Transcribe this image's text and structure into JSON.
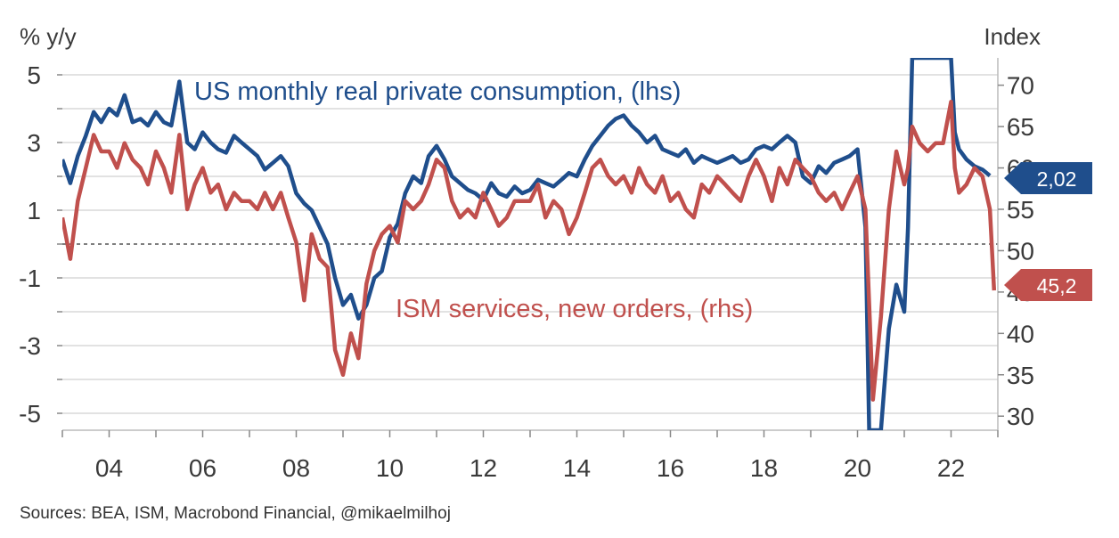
{
  "colors": {
    "consumption": "#1f4e8c",
    "ism": "#c0504d",
    "grid": "#d9d9d9",
    "axis_text": "#3a3a3a"
  },
  "source": "Sources: BEA, ISM, Macrobond Financial, @mikaelmilhoj",
  "chart_data": {
    "type": "line",
    "left_axis": {
      "label": "% y/y",
      "range": [
        -5.5,
        5.5
      ],
      "ticks": [
        5,
        3,
        1,
        -1,
        -3,
        -5
      ],
      "tick_labels": [
        "5",
        "3",
        "1",
        "-1",
        "-3",
        "-5"
      ]
    },
    "right_axis": {
      "label": "Index",
      "range": [
        28.3,
        73.3
      ],
      "ticks": [
        70,
        65,
        60,
        55,
        50,
        45,
        40,
        35,
        30
      ],
      "tick_labels": [
        "70",
        "65",
        "60",
        "55",
        "50",
        "45",
        "40",
        "35",
        "30"
      ]
    },
    "x_axis": {
      "range": [
        2003.0,
        2023.0
      ],
      "ticks": [
        2004,
        2006,
        2008,
        2010,
        2012,
        2014,
        2016,
        2018,
        2020,
        2022
      ],
      "tick_labels": [
        "04",
        "06",
        "08",
        "10",
        "12",
        "14",
        "16",
        "18",
        "20",
        "22"
      ]
    },
    "reference_line": {
      "value": 0,
      "axis": "left",
      "style": "dashed"
    },
    "grid": true,
    "series": [
      {
        "name": "US monthly real private consumption, (lhs)",
        "axis": "left",
        "last_value_label": "2,02",
        "points": [
          [
            2003.0,
            2.5
          ],
          [
            2003.17,
            1.8
          ],
          [
            2003.33,
            2.6
          ],
          [
            2003.5,
            3.2
          ],
          [
            2003.67,
            3.9
          ],
          [
            2003.83,
            3.6
          ],
          [
            2004.0,
            4.0
          ],
          [
            2004.17,
            3.8
          ],
          [
            2004.33,
            4.4
          ],
          [
            2004.5,
            3.6
          ],
          [
            2004.67,
            3.7
          ],
          [
            2004.83,
            3.5
          ],
          [
            2005.0,
            3.9
          ],
          [
            2005.17,
            3.6
          ],
          [
            2005.33,
            3.5
          ],
          [
            2005.5,
            4.8
          ],
          [
            2005.67,
            3.0
          ],
          [
            2005.83,
            2.8
          ],
          [
            2006.0,
            3.3
          ],
          [
            2006.17,
            3.0
          ],
          [
            2006.33,
            2.8
          ],
          [
            2006.5,
            2.7
          ],
          [
            2006.67,
            3.2
          ],
          [
            2006.83,
            3.0
          ],
          [
            2007.0,
            2.8
          ],
          [
            2007.17,
            2.6
          ],
          [
            2007.33,
            2.2
          ],
          [
            2007.5,
            2.4
          ],
          [
            2007.67,
            2.6
          ],
          [
            2007.83,
            2.3
          ],
          [
            2008.0,
            1.5
          ],
          [
            2008.17,
            1.2
          ],
          [
            2008.33,
            1.0
          ],
          [
            2008.5,
            0.5
          ],
          [
            2008.67,
            0.0
          ],
          [
            2008.83,
            -1.0
          ],
          [
            2009.0,
            -1.8
          ],
          [
            2009.17,
            -1.5
          ],
          [
            2009.33,
            -2.2
          ],
          [
            2009.5,
            -1.8
          ],
          [
            2009.67,
            -1.0
          ],
          [
            2009.83,
            -0.8
          ],
          [
            2010.0,
            0.2
          ],
          [
            2010.17,
            0.6
          ],
          [
            2010.33,
            1.5
          ],
          [
            2010.5,
            2.0
          ],
          [
            2010.67,
            1.8
          ],
          [
            2010.83,
            2.6
          ],
          [
            2011.0,
            2.9
          ],
          [
            2011.17,
            2.5
          ],
          [
            2011.33,
            2.0
          ],
          [
            2011.5,
            1.8
          ],
          [
            2011.67,
            1.6
          ],
          [
            2011.83,
            1.5
          ],
          [
            2012.0,
            1.3
          ],
          [
            2012.17,
            1.8
          ],
          [
            2012.33,
            1.5
          ],
          [
            2012.5,
            1.4
          ],
          [
            2012.67,
            1.7
          ],
          [
            2012.83,
            1.5
          ],
          [
            2013.0,
            1.6
          ],
          [
            2013.17,
            1.9
          ],
          [
            2013.33,
            1.8
          ],
          [
            2013.5,
            1.7
          ],
          [
            2013.67,
            1.9
          ],
          [
            2013.83,
            2.1
          ],
          [
            2014.0,
            2.0
          ],
          [
            2014.17,
            2.5
          ],
          [
            2014.33,
            2.9
          ],
          [
            2014.5,
            3.2
          ],
          [
            2014.67,
            3.5
          ],
          [
            2014.83,
            3.7
          ],
          [
            2015.0,
            3.8
          ],
          [
            2015.17,
            3.5
          ],
          [
            2015.33,
            3.3
          ],
          [
            2015.5,
            3.0
          ],
          [
            2015.67,
            3.2
          ],
          [
            2015.83,
            2.8
          ],
          [
            2016.0,
            2.7
          ],
          [
            2016.17,
            2.6
          ],
          [
            2016.33,
            2.8
          ],
          [
            2016.5,
            2.4
          ],
          [
            2016.67,
            2.6
          ],
          [
            2016.83,
            2.5
          ],
          [
            2017.0,
            2.4
          ],
          [
            2017.17,
            2.5
          ],
          [
            2017.33,
            2.6
          ],
          [
            2017.5,
            2.4
          ],
          [
            2017.67,
            2.5
          ],
          [
            2017.83,
            2.8
          ],
          [
            2018.0,
            2.9
          ],
          [
            2018.17,
            2.8
          ],
          [
            2018.33,
            3.0
          ],
          [
            2018.5,
            3.2
          ],
          [
            2018.67,
            3.0
          ],
          [
            2018.83,
            2.0
          ],
          [
            2019.0,
            1.8
          ],
          [
            2019.17,
            2.3
          ],
          [
            2019.33,
            2.1
          ],
          [
            2019.5,
            2.4
          ],
          [
            2019.67,
            2.5
          ],
          [
            2019.83,
            2.6
          ],
          [
            2020.0,
            2.8
          ],
          [
            2020.17,
            0.5
          ],
          [
            2020.25,
            -5.5
          ],
          [
            2020.33,
            -5.5
          ],
          [
            2020.5,
            -5.5
          ],
          [
            2020.67,
            -2.5
          ],
          [
            2020.83,
            -1.2
          ],
          [
            2021.0,
            -2.0
          ],
          [
            2021.08,
            0.5
          ],
          [
            2021.17,
            5.5
          ],
          [
            2021.25,
            5.5
          ],
          [
            2021.33,
            5.5
          ],
          [
            2021.5,
            5.5
          ],
          [
            2021.67,
            5.5
          ],
          [
            2021.83,
            5.5
          ],
          [
            2022.0,
            5.5
          ],
          [
            2022.08,
            3.3
          ],
          [
            2022.17,
            2.8
          ],
          [
            2022.33,
            2.5
          ],
          [
            2022.5,
            2.3
          ],
          [
            2022.67,
            2.2
          ],
          [
            2022.83,
            2.02
          ]
        ]
      },
      {
        "name": "ISM services, new orders, (rhs)",
        "axis": "right",
        "last_value_label": "45,2",
        "points": [
          [
            2003.0,
            54
          ],
          [
            2003.17,
            49
          ],
          [
            2003.33,
            56
          ],
          [
            2003.5,
            60
          ],
          [
            2003.67,
            64
          ],
          [
            2003.83,
            62
          ],
          [
            2004.0,
            62
          ],
          [
            2004.17,
            60
          ],
          [
            2004.33,
            63
          ],
          [
            2004.5,
            61
          ],
          [
            2004.67,
            60
          ],
          [
            2004.83,
            58
          ],
          [
            2005.0,
            62
          ],
          [
            2005.17,
            60
          ],
          [
            2005.33,
            57
          ],
          [
            2005.5,
            64
          ],
          [
            2005.67,
            55
          ],
          [
            2005.83,
            58
          ],
          [
            2006.0,
            60
          ],
          [
            2006.17,
            57
          ],
          [
            2006.33,
            58
          ],
          [
            2006.5,
            55
          ],
          [
            2006.67,
            57
          ],
          [
            2006.83,
            56
          ],
          [
            2007.0,
            56
          ],
          [
            2007.17,
            55
          ],
          [
            2007.33,
            57
          ],
          [
            2007.5,
            55
          ],
          [
            2007.67,
            57
          ],
          [
            2007.83,
            54
          ],
          [
            2008.0,
            51
          ],
          [
            2008.17,
            44
          ],
          [
            2008.33,
            52
          ],
          [
            2008.5,
            49
          ],
          [
            2008.67,
            48
          ],
          [
            2008.83,
            38
          ],
          [
            2009.0,
            35
          ],
          [
            2009.17,
            40
          ],
          [
            2009.33,
            37
          ],
          [
            2009.5,
            46
          ],
          [
            2009.67,
            50
          ],
          [
            2009.83,
            52
          ],
          [
            2010.0,
            53
          ],
          [
            2010.17,
            51
          ],
          [
            2010.33,
            56
          ],
          [
            2010.5,
            55
          ],
          [
            2010.67,
            56
          ],
          [
            2010.83,
            58
          ],
          [
            2011.0,
            61
          ],
          [
            2011.17,
            60
          ],
          [
            2011.33,
            56
          ],
          [
            2011.5,
            54
          ],
          [
            2011.67,
            55
          ],
          [
            2011.83,
            54
          ],
          [
            2012.0,
            57
          ],
          [
            2012.17,
            55
          ],
          [
            2012.33,
            53
          ],
          [
            2012.5,
            54
          ],
          [
            2012.67,
            56
          ],
          [
            2012.83,
            56
          ],
          [
            2013.0,
            56
          ],
          [
            2013.17,
            58
          ],
          [
            2013.33,
            54
          ],
          [
            2013.5,
            56
          ],
          [
            2013.67,
            55
          ],
          [
            2013.83,
            52
          ],
          [
            2014.0,
            54
          ],
          [
            2014.17,
            57
          ],
          [
            2014.33,
            60
          ],
          [
            2014.5,
            61
          ],
          [
            2014.67,
            59
          ],
          [
            2014.83,
            58
          ],
          [
            2015.0,
            59
          ],
          [
            2015.17,
            57
          ],
          [
            2015.33,
            60
          ],
          [
            2015.5,
            58
          ],
          [
            2015.67,
            57
          ],
          [
            2015.83,
            59
          ],
          [
            2016.0,
            56
          ],
          [
            2016.17,
            57
          ],
          [
            2016.33,
            55
          ],
          [
            2016.5,
            54
          ],
          [
            2016.67,
            58
          ],
          [
            2016.83,
            57
          ],
          [
            2017.0,
            59
          ],
          [
            2017.17,
            58
          ],
          [
            2017.33,
            57
          ],
          [
            2017.5,
            56
          ],
          [
            2017.67,
            59
          ],
          [
            2017.83,
            61
          ],
          [
            2018.0,
            59
          ],
          [
            2018.17,
            56
          ],
          [
            2018.33,
            60
          ],
          [
            2018.5,
            58
          ],
          [
            2018.67,
            61
          ],
          [
            2018.83,
            60
          ],
          [
            2019.0,
            59
          ],
          [
            2019.17,
            57
          ],
          [
            2019.33,
            56
          ],
          [
            2019.5,
            57
          ],
          [
            2019.67,
            55
          ],
          [
            2019.83,
            57
          ],
          [
            2020.0,
            59
          ],
          [
            2020.17,
            55
          ],
          [
            2020.33,
            32
          ],
          [
            2020.5,
            42
          ],
          [
            2020.67,
            55
          ],
          [
            2020.83,
            62
          ],
          [
            2021.0,
            58
          ],
          [
            2021.08,
            60
          ],
          [
            2021.17,
            65
          ],
          [
            2021.33,
            63
          ],
          [
            2021.5,
            62
          ],
          [
            2021.67,
            63
          ],
          [
            2021.83,
            63
          ],
          [
            2022.0,
            68
          ],
          [
            2022.08,
            60
          ],
          [
            2022.17,
            57
          ],
          [
            2022.33,
            58
          ],
          [
            2022.5,
            60
          ],
          [
            2022.67,
            59
          ],
          [
            2022.83,
            55
          ],
          [
            2022.92,
            45.2
          ]
        ]
      }
    ],
    "annotations": [
      {
        "text": "US monthly real private consumption, (lhs)",
        "series": 0
      },
      {
        "text": "ISM services, new orders, (rhs)",
        "series": 1
      }
    ]
  }
}
